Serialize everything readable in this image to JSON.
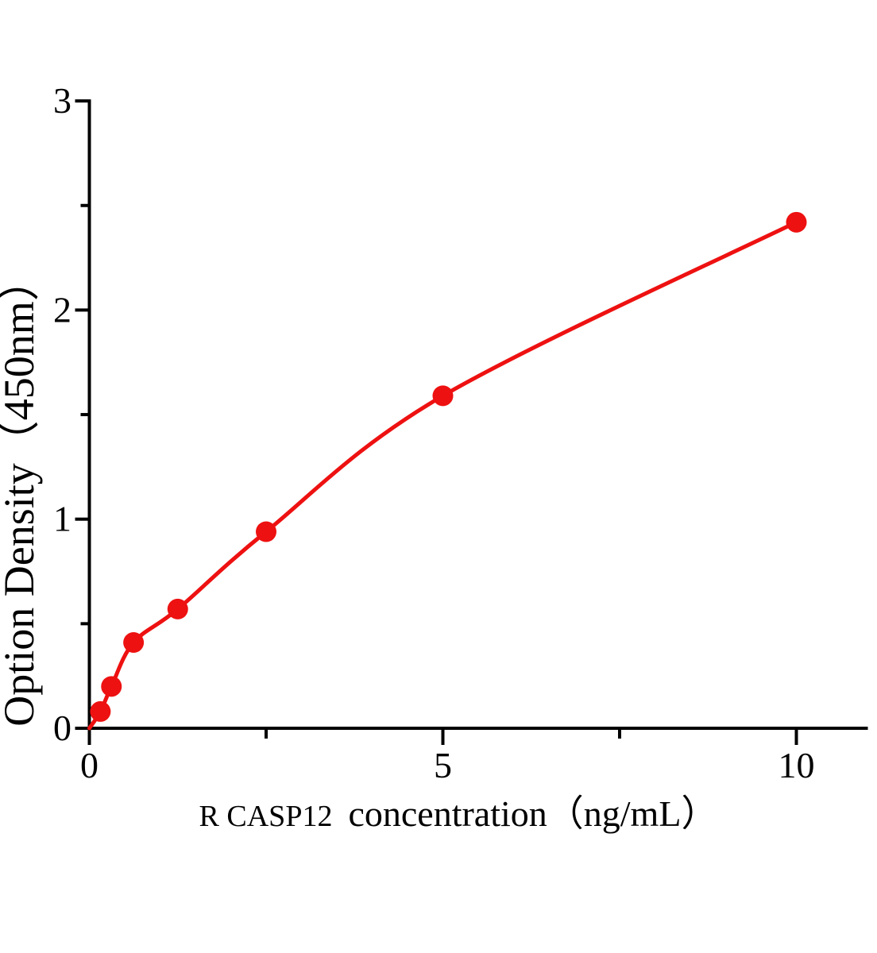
{
  "figure": {
    "background": "#ffffff"
  },
  "chart_data": {
    "type": "line",
    "title": "",
    "xlabel_prefix": "R CASP12",
    "xlabel_main": "concentration（ng/mL）",
    "ylabel": "Option Density（450nm）",
    "x": [
      0.156,
      0.312,
      0.625,
      1.25,
      2.5,
      5,
      10
    ],
    "y": [
      0.08,
      0.2,
      0.41,
      0.57,
      0.94,
      1.59,
      2.42
    ],
    "curve_origin_x": 0,
    "curve_origin_y": 0,
    "xlim": [
      0,
      11
    ],
    "ylim": [
      0,
      3
    ],
    "x_major_ticks": [
      0,
      5,
      10
    ],
    "x_major_tick_labels": [
      "0",
      "5",
      "10"
    ],
    "x_minor_ticks": [
      2.5,
      7.5
    ],
    "y_major_ticks": [
      0,
      1,
      2,
      3
    ],
    "y_major_tick_labels": [
      "0",
      "1",
      "2",
      "3"
    ],
    "y_minor_ticks": [
      0.5,
      1.5,
      2.5
    ],
    "series_color": "#ee1111",
    "axis_color": "#000000",
    "marker": "circle",
    "grid": false,
    "legend": "none"
  }
}
